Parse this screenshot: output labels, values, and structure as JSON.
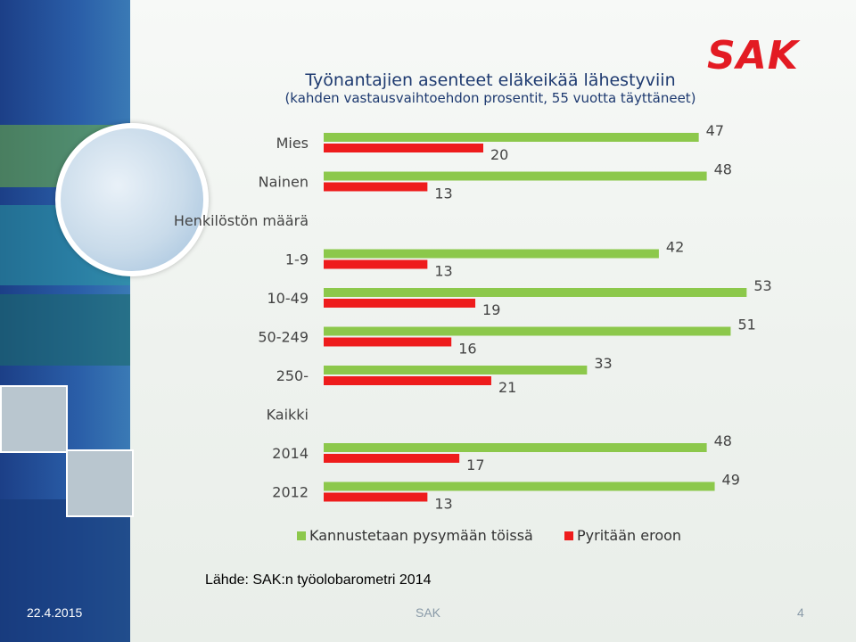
{
  "brand": {
    "logo_text": "SAK",
    "logo_color": "#e31b23"
  },
  "footer": {
    "date": "22.4.2015",
    "center": "SAK",
    "page": "4"
  },
  "source": "Lähde: SAK:n työolobarometri 2014",
  "chart_data": {
    "type": "bar",
    "orientation": "horizontal",
    "title": "Työnantajien asenteet eläkeikää lähestyviin",
    "subtitle": "(kahden vastausvaihtoehdon prosentit, 55 vuotta täyttäneet)",
    "rows": [
      {
        "label": "Mies"
      },
      {
        "label": "Nainen"
      },
      {
        "label": "Henkilöstön määrä",
        "header": true
      },
      {
        "label": "1-9"
      },
      {
        "label": "10-49"
      },
      {
        "label": "50-249"
      },
      {
        "label": "250-"
      },
      {
        "label": "Kaikki",
        "header": true
      },
      {
        "label": "2014"
      },
      {
        "label": "2012"
      }
    ],
    "series": [
      {
        "name": "Kannustetaan pysymään töissä",
        "color": "#8cc84b",
        "values": [
          47,
          48,
          null,
          42,
          53,
          51,
          33,
          null,
          48,
          49
        ]
      },
      {
        "name": "Pyritään eroon",
        "color": "#ee1c1c",
        "values": [
          20,
          13,
          null,
          13,
          19,
          16,
          21,
          null,
          17,
          13
        ]
      }
    ],
    "xlim": [
      0,
      53
    ],
    "legend": "bottom",
    "grid": false
  }
}
